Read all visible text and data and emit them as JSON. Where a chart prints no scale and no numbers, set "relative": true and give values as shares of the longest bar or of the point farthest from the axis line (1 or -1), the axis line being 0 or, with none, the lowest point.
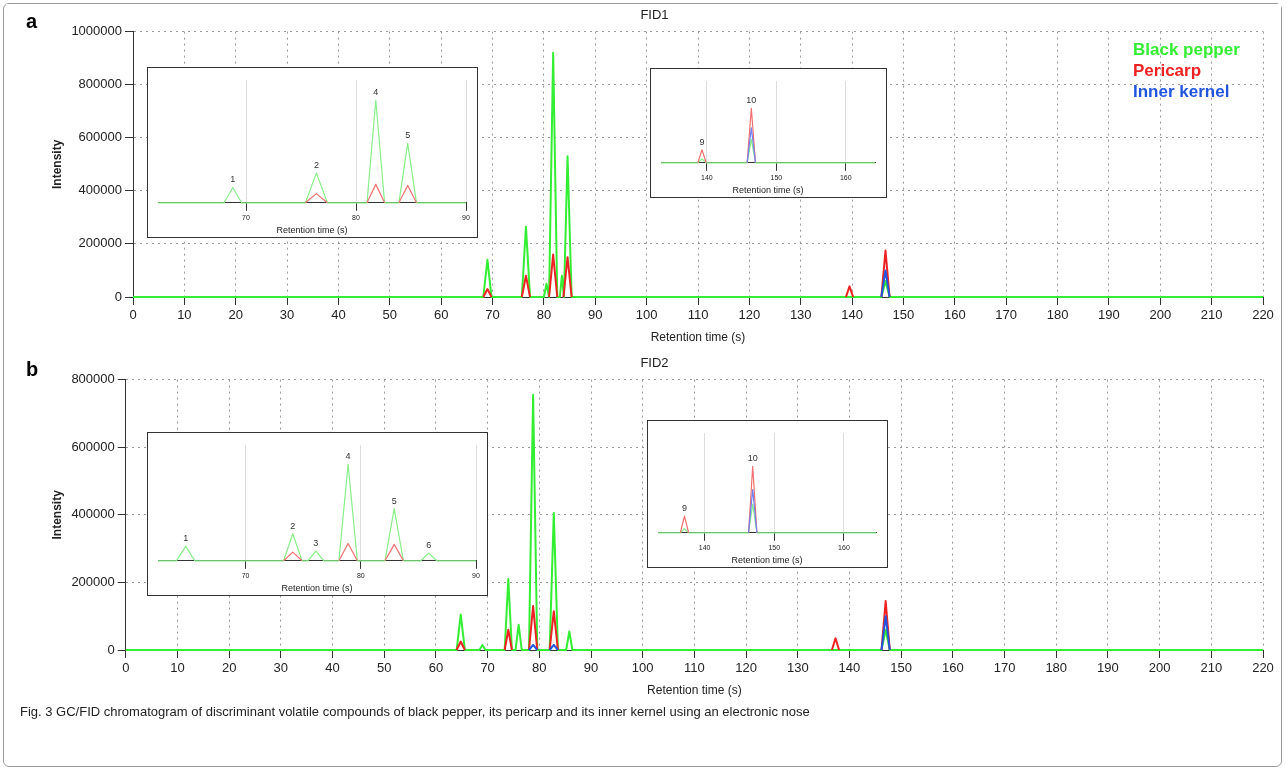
{
  "chart_data": [
    {
      "type": "line",
      "title": "FID1",
      "xlabel": "Retention time (s)",
      "ylabel": "Intensity",
      "xlim": [
        0,
        220
      ],
      "xticks": [
        0,
        10,
        20,
        30,
        40,
        50,
        60,
        70,
        80,
        90,
        100,
        110,
        120,
        130,
        140,
        150,
        160,
        170,
        180,
        190,
        200,
        210,
        220
      ],
      "ylim": [
        0,
        1000000
      ],
      "yticks": [
        0,
        200000,
        400000,
        600000,
        800000,
        1000000
      ],
      "grid": true,
      "legend": "top right",
      "annotations": [
        "a"
      ],
      "series": [
        {
          "name": "Black pepper",
          "color": "#33ee33",
          "x": [
            0,
            14,
            68.2,
            69,
            69.8,
            75.7,
            76.5,
            77.3,
            80,
            80.5,
            81,
            81.8,
            82.6,
            83.1,
            83.5,
            83.9,
            84.6,
            85.4,
            145.7,
            146.5,
            147.3,
            220
          ],
          "values": [
            0,
            0,
            0,
            140000,
            0,
            0,
            265000,
            0,
            0,
            50000,
            0,
            920000,
            0,
            0,
            80000,
            0,
            530000,
            0,
            0,
            60000,
            0,
            0
          ]
        },
        {
          "name": "Pericarp",
          "color": "#ee2222",
          "x": [
            68.2,
            69,
            69.8,
            72,
            75.7,
            76.5,
            77.3,
            79,
            81,
            81.8,
            82.6,
            83,
            83.8,
            84.6,
            85.4,
            110,
            138.8,
            139.5,
            140.2,
            143,
            145.7,
            146.5,
            147.3
          ],
          "values": [
            0,
            30000,
            0,
            null,
            0,
            80000,
            0,
            null,
            0,
            160000,
            0,
            null,
            0,
            150000,
            0,
            null,
            0,
            40000,
            0,
            null,
            0,
            175000,
            0
          ]
        },
        {
          "name": "Inner kernel",
          "color": "#2255dd",
          "x": [
            145.7,
            146.5,
            147.3
          ],
          "values": [
            0,
            100000,
            0
          ]
        }
      ]
    },
    {
      "type": "line",
      "relative": true,
      "xlabel": "Retention time (s)",
      "xlim": [
        62,
        90
      ],
      "xticks": [
        70,
        80,
        90
      ],
      "grid": "x",
      "annotations": [
        {
          "text": "1",
          "x": 68.8,
          "y": 0.15
        },
        {
          "text": "2",
          "x": 76.4,
          "y": 0.29
        },
        {
          "text": "4",
          "x": 81.8,
          "y": 1
        },
        {
          "text": "5",
          "x": 84.7,
          "y": 0.58
        }
      ],
      "series": [
        {
          "color": "#88ee88",
          "x": [
            62,
            68,
            68.8,
            69.6,
            75.4,
            76.4,
            77.4,
            81,
            81.8,
            82.6,
            83.9,
            84.7,
            85.5,
            90
          ],
          "values": [
            0,
            0,
            0.15,
            0,
            0,
            0.29,
            0,
            0,
            1,
            0,
            0,
            0.58,
            0,
            0
          ]
        },
        {
          "color": "#f07070",
          "x": [
            75.4,
            76.4,
            77.4,
            79,
            81,
            81.8,
            82.6,
            83,
            83.9,
            84.7,
            85.5
          ],
          "values": [
            0,
            0.09,
            0,
            null,
            0,
            0.18,
            0,
            null,
            0,
            0.17,
            0
          ]
        }
      ]
    },
    {
      "type": "line",
      "relative": true,
      "xlabel": "Retention time (s)",
      "xlim": [
        133.4,
        164.2
      ],
      "xticks": [
        140,
        150,
        160
      ],
      "grid": "x",
      "annotations": [
        {
          "text": "9",
          "x": 139.3,
          "y": 0.24
        },
        {
          "text": "10",
          "x": 146.4,
          "y": 1
        }
      ],
      "series": [
        {
          "color": "#88ee88",
          "x": [
            133.4,
            138.7,
            139.3,
            139.9,
            145.8,
            146.4,
            147,
            164.2
          ],
          "values": [
            0,
            0,
            0.07,
            0,
            0,
            0.43,
            0,
            0
          ]
        },
        {
          "color": "#f07070",
          "x": [
            138.7,
            139.3,
            139.9,
            142,
            145.8,
            146.4,
            147
          ],
          "values": [
            0,
            0.24,
            0,
            null,
            0,
            1,
            0
          ]
        },
        {
          "color": "#7080ee",
          "x": [
            145.8,
            146.4,
            147
          ],
          "values": [
            0,
            0.64,
            0
          ]
        }
      ]
    },
    {
      "type": "line",
      "title": "FID2",
      "xlabel": "Retention time (s)",
      "ylabel": "Intensity",
      "xlim": [
        0,
        220
      ],
      "xticks": [
        0,
        10,
        20,
        30,
        40,
        50,
        60,
        70,
        80,
        90,
        100,
        110,
        120,
        130,
        140,
        150,
        160,
        170,
        180,
        190,
        200,
        210,
        220
      ],
      "ylim": [
        0,
        800000
      ],
      "yticks": [
        0,
        200000,
        400000,
        600000,
        800000
      ],
      "grid": true,
      "annotations": [
        "b",
        "Fig. 3  GC/FID chromatogram of discriminant volatile compounds of black pepper, its pericarp and its inner kernel using an electronic nose"
      ],
      "series": [
        {
          "color": "#33ee33",
          "x": [
            0,
            14,
            64,
            64.8,
            65.6,
            68.4,
            69,
            69.6,
            73.3,
            74,
            74.7,
            75.4,
            76,
            76.6,
            78,
            78.8,
            79.6,
            82,
            82.8,
            83.6,
            85.2,
            85.8,
            86.4,
            146.2,
            147,
            147.8,
            220
          ],
          "values": [
            0,
            0,
            0,
            105000,
            0,
            0,
            15000,
            0,
            0,
            210000,
            0,
            0,
            75000,
            0,
            0,
            755000,
            0,
            0,
            405000,
            0,
            0,
            55000,
            0,
            0,
            60000,
            0,
            0
          ]
        },
        {
          "color": "#ee2222",
          "x": [
            64,
            64.8,
            65.6,
            70,
            73.3,
            74,
            74.7,
            76,
            78,
            78.8,
            79.6,
            81,
            82,
            82.8,
            83.6,
            110,
            136.6,
            137.3,
            138,
            142,
            146.2,
            147,
            147.8
          ],
          "values": [
            0,
            25000,
            0,
            null,
            0,
            60000,
            0,
            null,
            0,
            130000,
            0,
            null,
            0,
            115000,
            0,
            null,
            0,
            35000,
            0,
            null,
            0,
            145000,
            0
          ]
        },
        {
          "color": "#2255dd",
          "x": [
            78,
            78.8,
            79.6,
            81,
            82,
            82.8,
            83.6,
            110,
            146.2,
            147,
            147.8
          ],
          "values": [
            0,
            15000,
            0,
            null,
            0,
            15000,
            0,
            null,
            0,
            100000,
            0
          ]
        }
      ]
    },
    {
      "type": "line",
      "relative": true,
      "xlabel": "Retention time (s)",
      "xlim": [
        62.4,
        90
      ],
      "xticks": [
        70,
        80,
        90
      ],
      "grid": "x",
      "annotations": [
        {
          "text": "1",
          "x": 64.8,
          "y": 0.15
        },
        {
          "text": "2",
          "x": 74.1,
          "y": 0.28
        },
        {
          "text": "3",
          "x": 76.1,
          "y": 0.1
        },
        {
          "text": "4",
          "x": 78.9,
          "y": 1
        },
        {
          "text": "5",
          "x": 82.9,
          "y": 0.54
        },
        {
          "text": "6",
          "x": 85.9,
          "y": 0.08
        }
      ],
      "series": [
        {
          "color": "#88ee88",
          "x": [
            62.4,
            64,
            64.8,
            65.6,
            73.3,
            74.1,
            74.9,
            75.4,
            76.1,
            76.8,
            78.1,
            78.9,
            79.7,
            82.1,
            82.9,
            83.7,
            85.2,
            85.9,
            86.6,
            90
          ],
          "values": [
            0,
            0,
            0.15,
            0,
            0,
            0.28,
            0,
            0,
            0.1,
            0,
            0,
            1,
            0,
            0,
            0.54,
            0,
            0,
            0.08,
            0,
            0
          ]
        },
        {
          "color": "#f07070",
          "x": [
            73.3,
            74.1,
            74.9,
            77.5,
            78.1,
            78.9,
            79.7,
            81,
            82.1,
            82.9,
            83.7
          ],
          "values": [
            0,
            0.09,
            0,
            null,
            0,
            0.18,
            0,
            null,
            0,
            0.17,
            0
          ]
        }
      ]
    },
    {
      "type": "line",
      "relative": true,
      "xlabel": "Retention time (s)",
      "xlim": [
        133.3,
        164.6
      ],
      "xticks": [
        140,
        150,
        160
      ],
      "grid": "x",
      "annotations": [
        {
          "text": "9",
          "x": 137.1,
          "y": 0.25
        },
        {
          "text": "10",
          "x": 146.9,
          "y": 1
        }
      ],
      "series": [
        {
          "color": "#88ee88",
          "x": [
            133.3,
            136.5,
            137.1,
            137.7,
            146.3,
            146.9,
            147.5,
            164.6
          ],
          "values": [
            0,
            0,
            0.06,
            0,
            0,
            0.43,
            0,
            0
          ]
        },
        {
          "color": "#f07070",
          "x": [
            136.5,
            137.1,
            137.7,
            142,
            146.3,
            146.9,
            147.5
          ],
          "values": [
            0,
            0.25,
            0,
            null,
            0,
            1,
            0
          ]
        },
        {
          "color": "#7080ee",
          "x": [
            146.3,
            146.9,
            147.5
          ],
          "values": [
            0,
            0.65,
            0
          ]
        }
      ]
    }
  ]
}
